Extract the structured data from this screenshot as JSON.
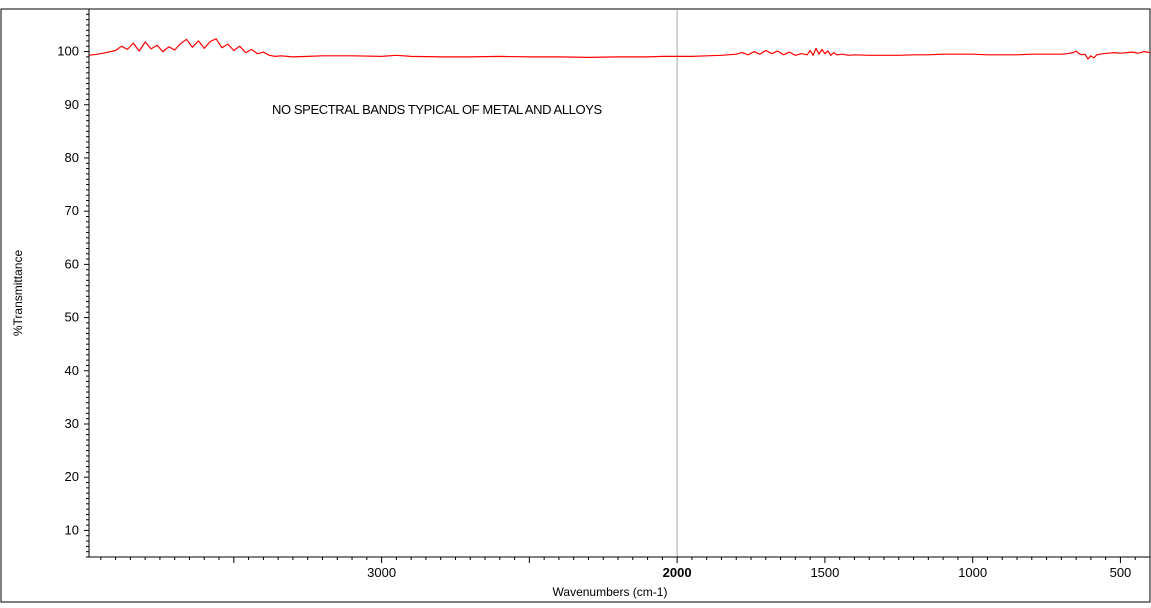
{
  "chart_data": {
    "type": "line",
    "title": "",
    "xlabel": "Wavenumbers (cm-1)",
    "ylabel": "%Transmittance",
    "annotation": "NO SPECTRAL BANDS TYPICAL OF METAL AND ALLOYS",
    "xlim": [
      3990,
      400
    ],
    "ylim": [
      5,
      108
    ],
    "x_axis_reversed": true,
    "x_ticks": [
      3000,
      2000,
      1500,
      1000,
      500
    ],
    "x_tick_labels": [
      "3000",
      "2000",
      "1500",
      "1000",
      "500"
    ],
    "y_ticks": [
      10,
      20,
      30,
      40,
      50,
      60,
      70,
      80,
      90,
      100
    ],
    "y_tick_labels": [
      "10",
      "20",
      "30",
      "40",
      "50",
      "60",
      "70",
      "80",
      "90",
      "100"
    ],
    "reference_line_x": 2000,
    "grid": false,
    "series": [
      {
        "color": "#ff0000",
        "x": [
          3990,
          3950,
          3900,
          3880,
          3860,
          3840,
          3820,
          3800,
          3780,
          3760,
          3740,
          3720,
          3700,
          3680,
          3660,
          3640,
          3620,
          3600,
          3580,
          3560,
          3540,
          3520,
          3500,
          3480,
          3460,
          3440,
          3420,
          3400,
          3380,
          3360,
          3340,
          3300,
          3250,
          3200,
          3100,
          3000,
          2950,
          2900,
          2800,
          2700,
          2600,
          2500,
          2400,
          2300,
          2200,
          2100,
          2050,
          2000,
          1950,
          1900,
          1850,
          1800,
          1780,
          1760,
          1740,
          1720,
          1700,
          1680,
          1660,
          1640,
          1620,
          1600,
          1580,
          1560,
          1550,
          1540,
          1530,
          1520,
          1510,
          1500,
          1490,
          1480,
          1470,
          1460,
          1440,
          1420,
          1400,
          1350,
          1300,
          1250,
          1200,
          1150,
          1100,
          1050,
          1000,
          950,
          900,
          850,
          800,
          750,
          700,
          680,
          660,
          650,
          640,
          630,
          620,
          610,
          600,
          590,
          580,
          560,
          540,
          520,
          500,
          480,
          460,
          440,
          420,
          400
        ],
        "y": [
          99.3,
          99.6,
          100.2,
          101.0,
          100.4,
          101.6,
          100.1,
          101.8,
          100.5,
          101.2,
          100.0,
          100.9,
          100.3,
          101.5,
          102.3,
          100.8,
          102.0,
          100.6,
          101.9,
          102.4,
          100.7,
          101.4,
          100.2,
          101.0,
          99.8,
          100.4,
          99.6,
          99.9,
          99.3,
          99.1,
          99.2,
          99.0,
          99.1,
          99.2,
          99.2,
          99.1,
          99.3,
          99.1,
          99.0,
          99.0,
          99.1,
          99.0,
          99.0,
          98.9,
          99.0,
          99.0,
          99.1,
          99.1,
          99.1,
          99.2,
          99.3,
          99.5,
          99.8,
          99.4,
          100.0,
          99.5,
          100.2,
          99.6,
          100.1,
          99.4,
          99.9,
          99.3,
          99.6,
          99.4,
          100.2,
          99.3,
          100.6,
          99.5,
          100.4,
          99.6,
          100.1,
          99.3,
          99.8,
          99.4,
          99.5,
          99.3,
          99.4,
          99.3,
          99.3,
          99.3,
          99.4,
          99.4,
          99.5,
          99.5,
          99.5,
          99.4,
          99.4,
          99.4,
          99.5,
          99.5,
          99.5,
          99.6,
          99.8,
          100.1,
          99.6,
          99.4,
          99.5,
          98.6,
          99.2,
          98.8,
          99.4,
          99.6,
          99.7,
          99.8,
          99.7,
          99.8,
          99.9,
          99.7,
          100.0,
          99.8
        ]
      }
    ]
  }
}
